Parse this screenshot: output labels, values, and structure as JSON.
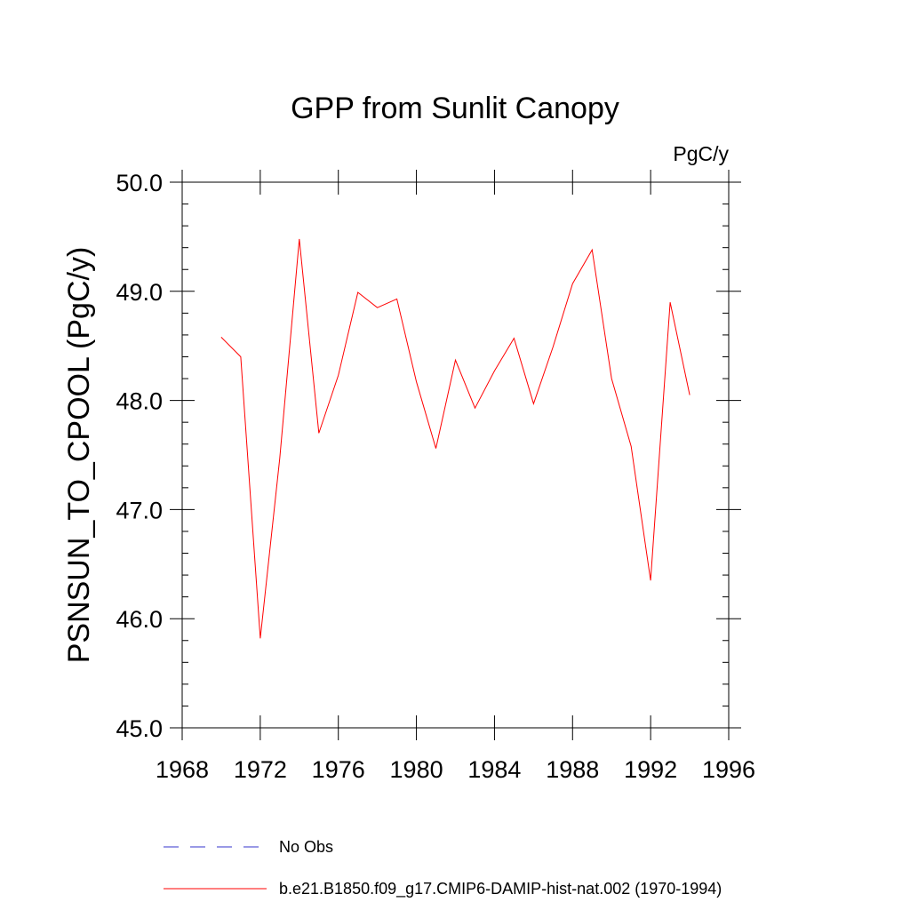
{
  "chart_data": {
    "type": "line",
    "title": "GPP from Sunlit Canopy",
    "units": "PgC/y",
    "ylabel": "PSNSUN_TO_CPOOL  (PgC/y)",
    "xlabel": "",
    "xlim": [
      1968,
      1996
    ],
    "ylim": [
      45.0,
      50.0
    ],
    "x_ticks": [
      1968,
      1972,
      1976,
      1980,
      1984,
      1988,
      1992,
      1996
    ],
    "x_tick_labels": [
      "1968",
      "1972",
      "1976",
      "1980",
      "1984",
      "1988",
      "1992",
      "1996"
    ],
    "y_ticks": [
      45.0,
      46.0,
      47.0,
      48.0,
      49.0,
      50.0
    ],
    "y_tick_labels": [
      "45.0",
      "46.0",
      "47.0",
      "48.0",
      "49.0",
      "50.0"
    ],
    "grid": false,
    "legend_position": "bottom",
    "series": [
      {
        "name": "b.e21.B1850.f09_g17.CMIP6-DAMIP-hist-nat.002 (1970-1994)",
        "color": "#ff0000",
        "style": "solid",
        "x": [
          1970,
          1971,
          1972,
          1973,
          1974,
          1975,
          1976,
          1977,
          1978,
          1979,
          1980,
          1981,
          1982,
          1983,
          1984,
          1985,
          1986,
          1987,
          1988,
          1989,
          1990,
          1991,
          1992,
          1993,
          1994
        ],
        "y": [
          48.58,
          48.4,
          45.82,
          47.47,
          49.48,
          47.7,
          48.23,
          48.99,
          48.85,
          48.93,
          48.17,
          47.56,
          48.37,
          47.93,
          48.27,
          48.57,
          47.97,
          48.49,
          49.07,
          49.38,
          48.2,
          47.58,
          46.35,
          48.9,
          48.05
        ]
      }
    ],
    "legend": [
      {
        "label": "No Obs",
        "color": "#3333cc",
        "style": "dashed"
      },
      {
        "label": "b.e21.B1850.f09_g17.CMIP6-DAMIP-hist-nat.002 (1970-1994)",
        "color": "#ff0000",
        "style": "solid"
      }
    ]
  }
}
